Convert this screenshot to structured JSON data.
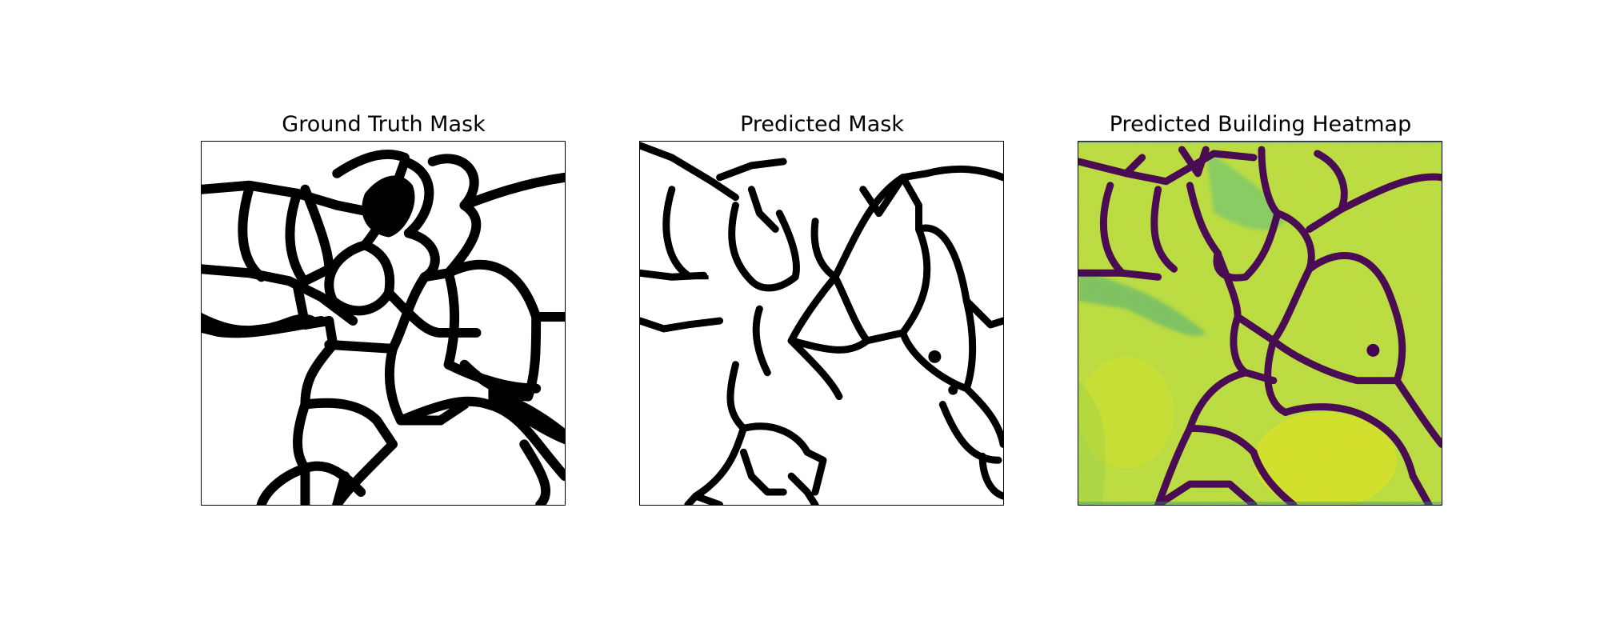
{
  "panels": [
    {
      "title": "Ground Truth Mask"
    },
    {
      "title": "Predicted Mask"
    },
    {
      "title": "Predicted Building Heatmap"
    }
  ],
  "colors": {
    "mask_background": "#ffffff",
    "mask_boundary": "#000000",
    "heatmap_high": "#d9e21f",
    "heatmap_mid": "#2a9d8c",
    "heatmap_low": "#440154"
  },
  "colormap": "viridis"
}
